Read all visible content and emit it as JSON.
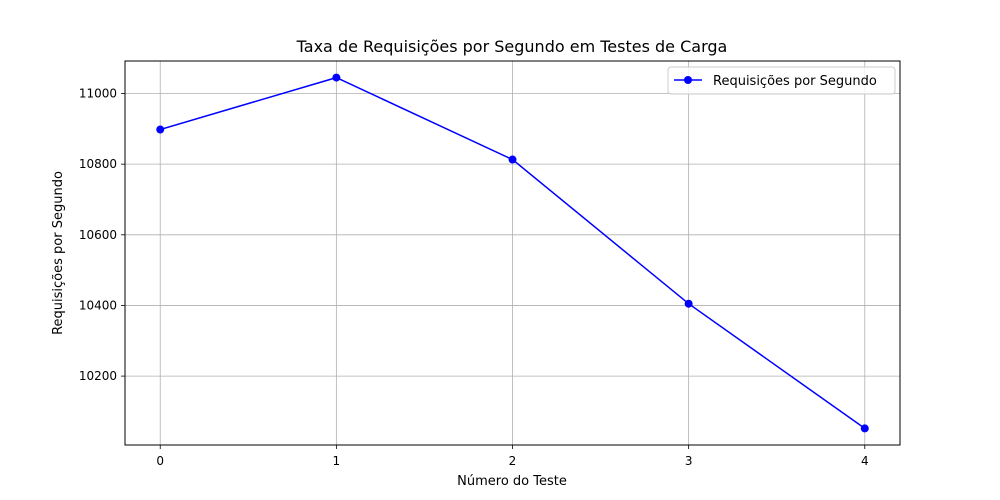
{
  "chart_data": {
    "type": "line",
    "title": "Taxa de Requisições por Segundo em Testes de Carga",
    "xlabel": "Número do Teste",
    "ylabel": "Requisições por Segundo",
    "x": [
      0,
      1,
      2,
      3,
      4
    ],
    "series": [
      {
        "name": "Requisições por Segundo",
        "color": "#0000ff",
        "marker": "circle",
        "values": [
          10898,
          11045,
          10813,
          10405,
          10052
        ]
      }
    ],
    "xlim": [
      -0.2,
      4.2
    ],
    "ylim": [
      10005,
      11092
    ],
    "xticks": [
      0,
      1,
      2,
      3,
      4
    ],
    "yticks": [
      10200,
      10400,
      10600,
      10800,
      11000
    ],
    "grid": true,
    "legend_position": "top-right"
  }
}
